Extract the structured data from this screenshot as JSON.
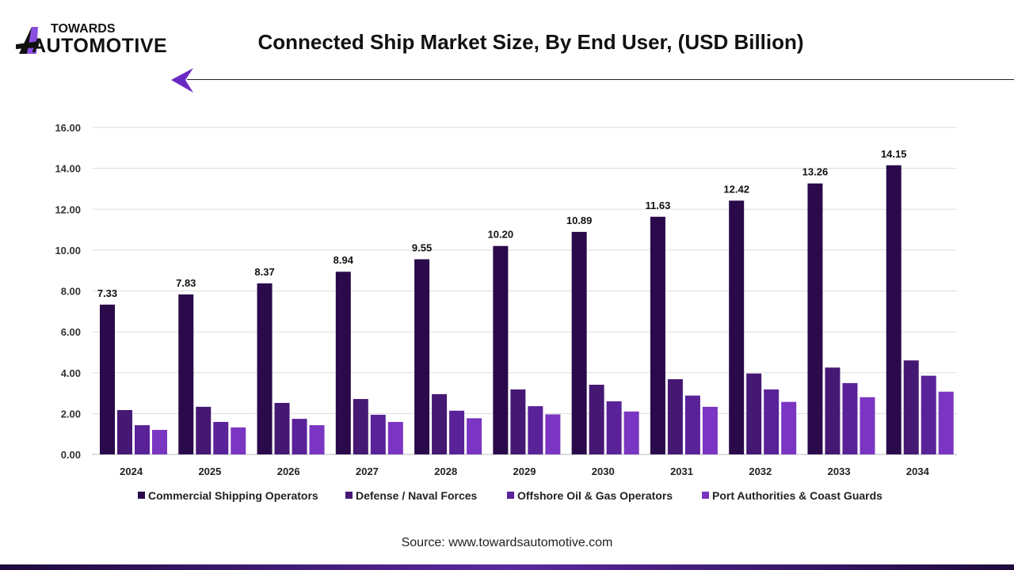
{
  "brand": {
    "line1": "TOWARDS",
    "line2": "AUTOMOTIVE"
  },
  "source": "Source: www.towardsautomotive.com",
  "chart_data": {
    "type": "bar",
    "title": "Connected Ship Market Size, By End User, (USD Billion)",
    "categories": [
      "2024",
      "2025",
      "2026",
      "2027",
      "2028",
      "2029",
      "2030",
      "2031",
      "2032",
      "2033",
      "2034"
    ],
    "ylim": [
      0,
      16
    ],
    "yticks": [
      "0.00",
      "2.00",
      "4.00",
      "6.00",
      "8.00",
      "10.00",
      "12.00",
      "14.00",
      "16.00"
    ],
    "grid": true,
    "legend_position": "bottom",
    "series": [
      {
        "name": "Commercial Shipping Operators",
        "color": "#2a0a4a",
        "values": [
          7.33,
          7.83,
          8.37,
          8.94,
          9.55,
          10.2,
          10.89,
          11.63,
          12.42,
          13.26,
          14.15
        ],
        "labels": [
          "7.33",
          "7.83",
          "8.37",
          "8.94",
          "9.55",
          "10.20",
          "10.89",
          "11.63",
          "12.42",
          "13.26",
          "14.15"
        ]
      },
      {
        "name": "Defense / Naval Forces",
        "color": "#451873",
        "values": [
          2.17,
          2.33,
          2.52,
          2.71,
          2.95,
          3.18,
          3.41,
          3.68,
          3.96,
          4.25,
          4.6
        ]
      },
      {
        "name": "Offshore Oil & Gas Operators",
        "color": "#5a2298",
        "values": [
          1.43,
          1.59,
          1.74,
          1.94,
          2.14,
          2.36,
          2.6,
          2.88,
          3.18,
          3.49,
          3.85
        ]
      },
      {
        "name": "Port Authorities & Coast Guards",
        "color": "#7a35c2",
        "values": [
          1.2,
          1.32,
          1.43,
          1.59,
          1.77,
          1.96,
          2.1,
          2.33,
          2.57,
          2.8,
          3.07
        ]
      }
    ]
  }
}
